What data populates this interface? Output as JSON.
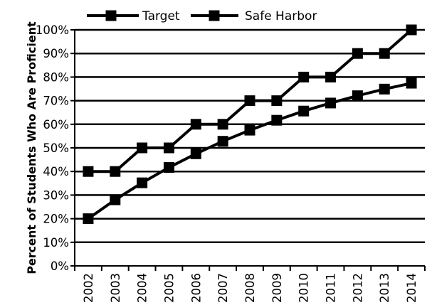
{
  "chart_data": {
    "type": "line",
    "title": "",
    "xlabel": "",
    "ylabel": "Percent of Students Who Are Proficient",
    "categories": [
      "2002",
      "2003",
      "2004",
      "2005",
      "2006",
      "2007",
      "2008",
      "2009",
      "2010",
      "2011",
      "2012",
      "2013",
      "2014"
    ],
    "y_ticks": [
      "0%",
      "10%",
      "20%",
      "30%",
      "40%",
      "50%",
      "60%",
      "70%",
      "80%",
      "90%",
      "100%"
    ],
    "ylim": [
      0,
      100
    ],
    "grid": "horizontal",
    "legend_position": "top",
    "series": [
      {
        "name": "Target",
        "values": [
          40,
          40,
          50,
          50,
          60,
          60,
          70,
          70,
          80,
          80,
          90,
          90,
          100
        ],
        "color": "#000000",
        "marker": "square"
      },
      {
        "name": "Safe Harbor",
        "values": [
          20,
          28,
          35.2,
          41.7,
          47.5,
          52.8,
          57.5,
          61.7,
          65.6,
          69.0,
          72.1,
          74.9,
          77.4
        ],
        "color": "#000000",
        "marker": "square"
      }
    ]
  }
}
